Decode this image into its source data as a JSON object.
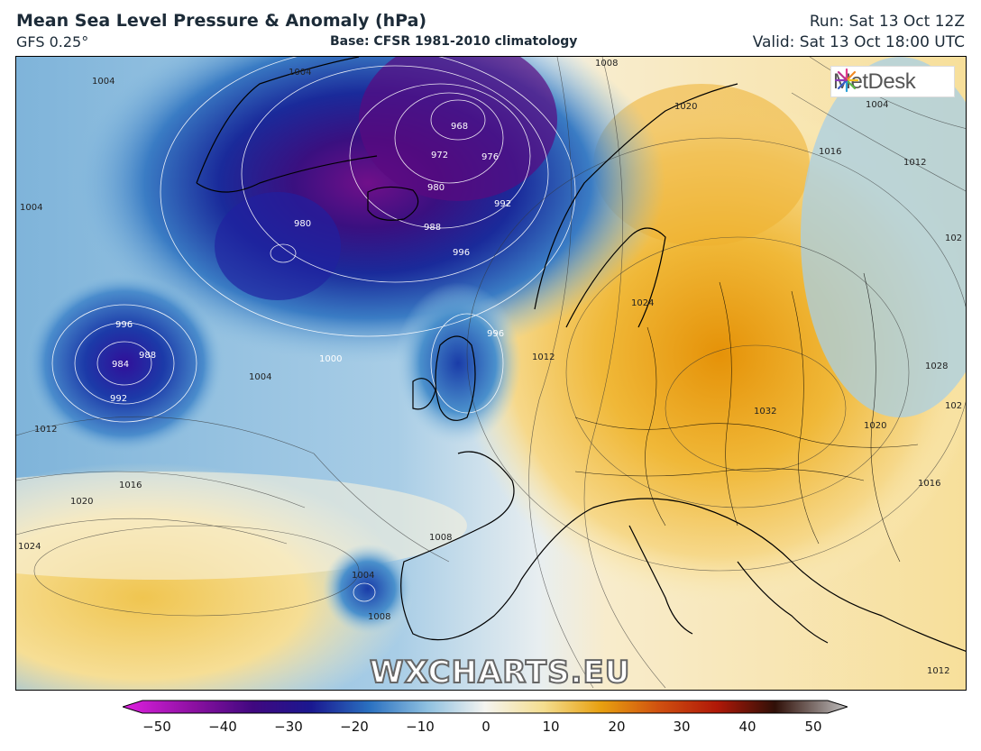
{
  "header": {
    "title": "Mean Sea Level Pressure & Anomaly (hPa)",
    "model": "GFS 0.25°",
    "base": "Base: CFSR 1981-2010 climatology",
    "run": "Run: Sat 13 Oct 12Z",
    "valid": "Valid: Sat 13 Oct 18:00 UTC"
  },
  "logo": {
    "text": "MetDesk"
  },
  "watermark": "WXCHARTS.EU",
  "isobar_labels": [
    "1004",
    "1004",
    "1008",
    "1004",
    "1004",
    "1012",
    "1016",
    "1020",
    "1020",
    "1024",
    "968",
    "972",
    "976",
    "980",
    "992",
    "988",
    "996",
    "980",
    "996",
    "988",
    "984",
    "992",
    "1000",
    "1004",
    "1012",
    "1016",
    "1020",
    "1024",
    "1028",
    "1032",
    "1028",
    "1020",
    "1016",
    "1024",
    "1008",
    "1004",
    "1008",
    "1012",
    "1016",
    "102",
    "102"
  ],
  "colorbar": {
    "ticks": [
      "−50",
      "−40",
      "−30",
      "−20",
      "−10",
      "0",
      "10",
      "20",
      "30",
      "40",
      "50"
    ],
    "colors": {
      "min": "#e020e0",
      "purple": "#5a0080",
      "navy": "#1a1890",
      "blue": "#2a70c0",
      "light_blue": "#b0d4ea",
      "white": "#f4f4f0",
      "yellow": "#f4de90",
      "orange": "#e8a010",
      "red": "#b01808",
      "dark": "#301008",
      "max": "#c0c0c0"
    }
  }
}
